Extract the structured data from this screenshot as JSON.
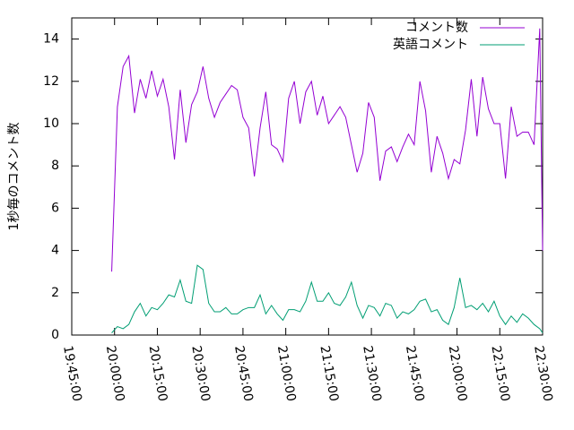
{
  "chart_data": {
    "type": "line",
    "y_label": "1秒毎のコメント数",
    "x": [
      "19:59:00",
      "20:01:00",
      "20:03:00",
      "20:05:00",
      "20:07:00",
      "20:09:00",
      "20:11:00",
      "20:13:00",
      "20:15:00",
      "20:17:00",
      "20:19:00",
      "20:21:00",
      "20:23:00",
      "20:25:00",
      "20:27:00",
      "20:29:00",
      "20:31:00",
      "20:33:00",
      "20:35:00",
      "20:37:00",
      "20:39:00",
      "20:41:00",
      "20:43:00",
      "20:45:00",
      "20:47:00",
      "20:49:00",
      "20:51:00",
      "20:53:00",
      "20:55:00",
      "20:57:00",
      "20:59:00",
      "21:01:00",
      "21:03:00",
      "21:05:00",
      "21:07:00",
      "21:09:00",
      "21:11:00",
      "21:13:00",
      "21:15:00",
      "21:17:00",
      "21:19:00",
      "21:21:00",
      "21:23:00",
      "21:25:00",
      "21:27:00",
      "21:29:00",
      "21:31:00",
      "21:33:00",
      "21:35:00",
      "21:37:00",
      "21:39:00",
      "21:41:00",
      "21:43:00",
      "21:45:00",
      "21:47:00",
      "21:49:00",
      "21:51:00",
      "21:53:00",
      "21:55:00",
      "21:57:00",
      "21:59:00",
      "22:01:00",
      "22:03:00",
      "22:05:00",
      "22:07:00",
      "22:09:00",
      "22:11:00",
      "22:13:00",
      "22:15:00",
      "22:17:00",
      "22:19:00",
      "22:21:00",
      "22:23:00",
      "22:25:00",
      "22:27:00",
      "22:29:00",
      "22:30:00"
    ],
    "series": [
      {
        "name": "コメント数",
        "color": "#9400d3",
        "values": [
          3,
          10.8,
          12.7,
          13.2,
          10.5,
          12.1,
          11.2,
          12.5,
          11.3,
          12.1,
          10.8,
          8.3,
          11.6,
          9.1,
          10.9,
          11.5,
          12.7,
          11.2,
          10.3,
          11.0,
          11.4,
          11.8,
          11.6,
          10.3,
          9.8,
          7.5,
          9.8,
          11.5,
          9.0,
          8.8,
          8.2,
          11.2,
          12.0,
          10.0,
          11.5,
          12.0,
          10.4,
          11.3,
          10.0,
          10.4,
          10.8,
          10.3,
          9.0,
          7.7,
          8.6,
          11.0,
          10.3,
          7.3,
          8.7,
          8.9,
          8.2,
          8.9,
          9.5,
          9.0,
          12.0,
          10.6,
          7.7,
          9.4,
          8.6,
          7.4,
          8.3,
          8.1,
          9.7,
          12.1,
          9.4,
          12.2,
          10.7,
          10.0,
          10.0,
          7.4,
          10.8,
          9.4,
          9.6,
          9.6,
          9.0,
          14.5,
          4.0
        ]
      },
      {
        "name": "英語コメント",
        "color": "#009e73",
        "values": [
          0.1,
          0.4,
          0.3,
          0.5,
          1.1,
          1.5,
          0.9,
          1.3,
          1.2,
          1.5,
          1.9,
          1.8,
          2.6,
          1.6,
          1.5,
          3.3,
          3.1,
          1.5,
          1.1,
          1.1,
          1.3,
          1.0,
          1.0,
          1.2,
          1.3,
          1.3,
          1.9,
          1.0,
          1.4,
          1.0,
          0.7,
          1.2,
          1.2,
          1.1,
          1.6,
          2.5,
          1.6,
          1.6,
          2.0,
          1.5,
          1.4,
          1.8,
          2.5,
          1.4,
          0.8,
          1.4,
          1.3,
          0.9,
          1.5,
          1.4,
          0.8,
          1.1,
          1.0,
          1.2,
          1.6,
          1.7,
          1.1,
          1.2,
          0.7,
          0.5,
          1.3,
          2.7,
          1.3,
          1.4,
          1.2,
          1.5,
          1.1,
          1.6,
          0.9,
          0.5,
          0.9,
          0.6,
          1.0,
          0.8,
          0.5,
          0.3,
          0.1
        ]
      }
    ],
    "xlim": [
      "19:45:00",
      "22:30:00"
    ],
    "xticks": [
      "19:45:00",
      "20:00:00",
      "20:15:00",
      "20:30:00",
      "20:45:00",
      "21:00:00",
      "21:15:00",
      "21:30:00",
      "21:45:00",
      "22:00:00",
      "22:15:00",
      "22:30:00"
    ],
    "ylim": [
      0,
      15
    ],
    "yticks": [
      0,
      2,
      4,
      6,
      8,
      10,
      12,
      14
    ],
    "legend": "top-right"
  }
}
